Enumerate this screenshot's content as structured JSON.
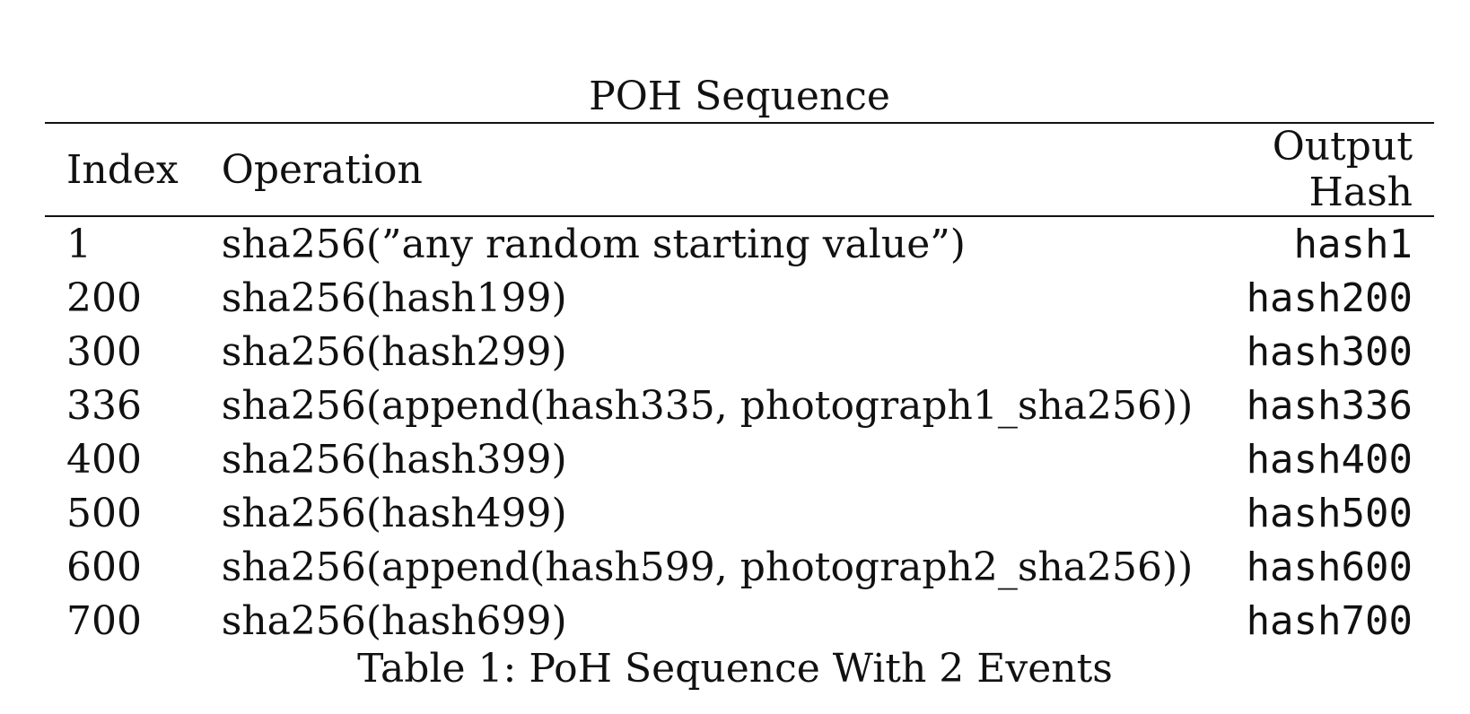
{
  "table": {
    "title": "POH Sequence",
    "headers": {
      "index": "Index",
      "operation": "Operation",
      "output_hash": "Output Hash"
    },
    "rows": [
      {
        "index": "1",
        "operation": "sha256(”any random starting value”)",
        "output_hash": "hash1"
      },
      {
        "index": "200",
        "operation": "sha256(hash199)",
        "output_hash": "hash200"
      },
      {
        "index": "300",
        "operation": "sha256(hash299)",
        "output_hash": "hash300"
      },
      {
        "index": "336",
        "operation": "sha256(append(hash335, photograph1_sha256))",
        "output_hash": "hash336"
      },
      {
        "index": "400",
        "operation": "sha256(hash399)",
        "output_hash": "hash400"
      },
      {
        "index": "500",
        "operation": "sha256(hash499)",
        "output_hash": "hash500"
      },
      {
        "index": "600",
        "operation": "sha256(append(hash599, photograph2_sha256))",
        "output_hash": "hash600"
      },
      {
        "index": "700",
        "operation": "sha256(hash699)",
        "output_hash": "hash700"
      }
    ],
    "caption": "Table 1: PoH Sequence With 2 Events"
  }
}
